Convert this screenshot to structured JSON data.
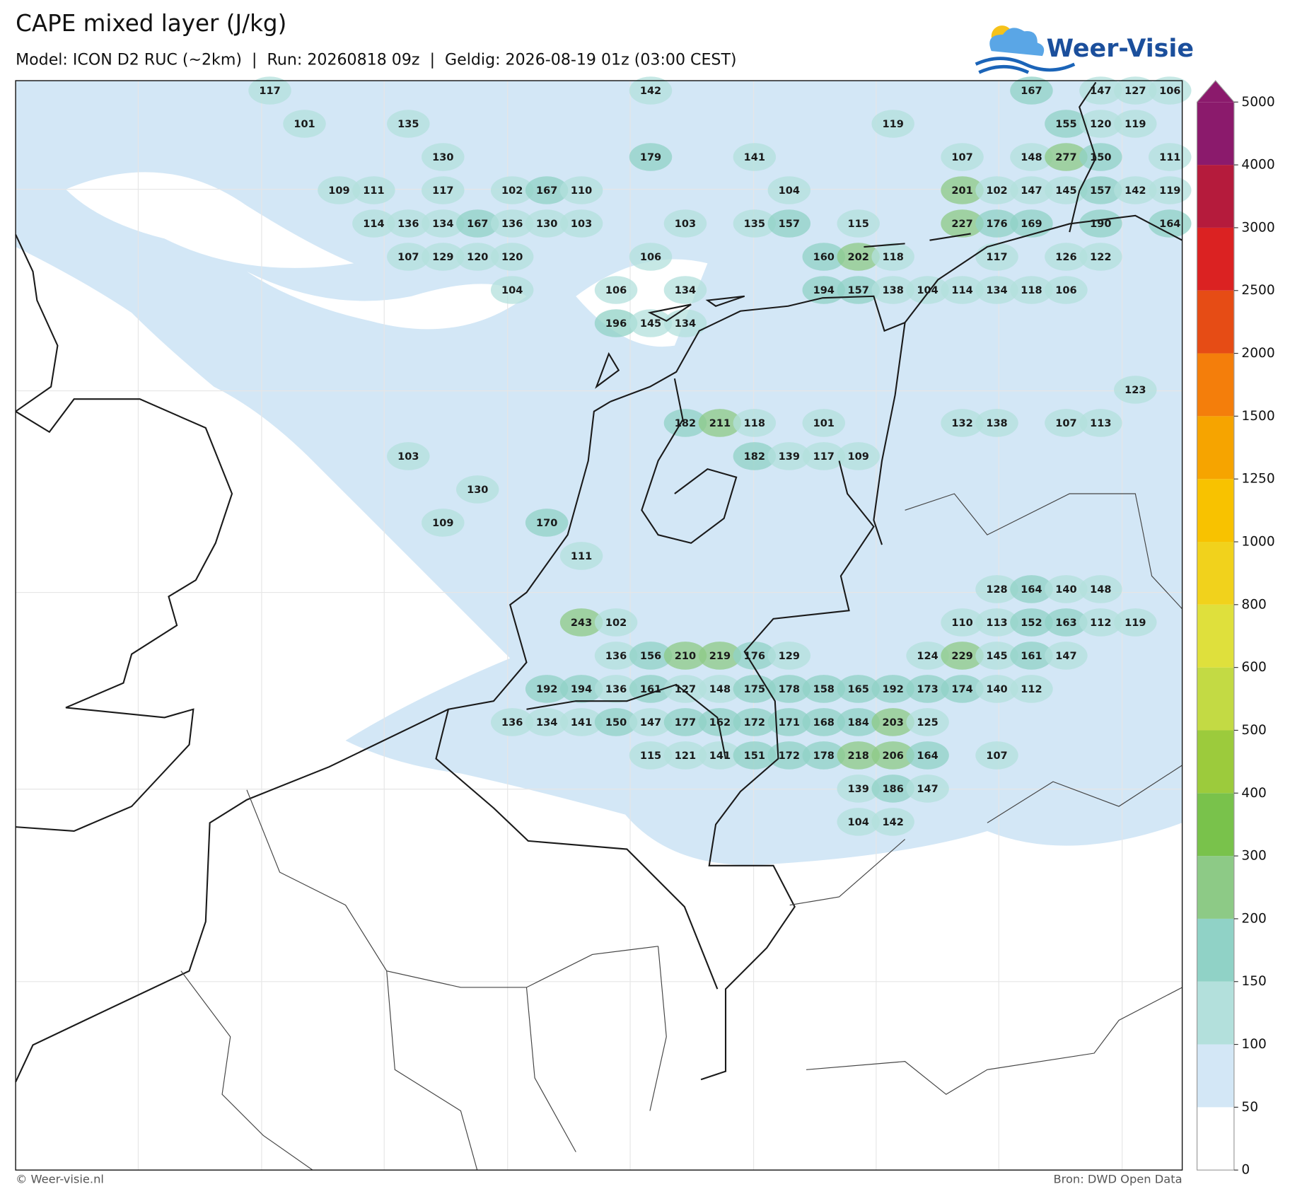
{
  "map": {
    "title": "CAPE mixed layer (J/kg)",
    "subtitle": "Model: ICON D2 RUC (~2km)  |  Run: 20260818 09z  |  Geldig: 2026-08-19 01z (03:00 CEST)",
    "logo": "Weer-Visie",
    "labels": [
      [
        117,
        null,
        null,
        null,
        null,
        null,
        null,
        null,
        null,
        null,
        null,
        142,
        null,
        null,
        null,
        null,
        null,
        null,
        null,
        null,
        null,
        null,
        167,
        null,
        147,
        127,
        106
      ],
      [
        null,
        101,
        null,
        null,
        135,
        null,
        null,
        null,
        null,
        null,
        null,
        null,
        null,
        null,
        null,
        null,
        null,
        null,
        119,
        null,
        null,
        null,
        null,
        155,
        120,
        119,
        null
      ],
      [
        null,
        null,
        null,
        null,
        null,
        130,
        null,
        null,
        null,
        null,
        null,
        179,
        null,
        null,
        141,
        null,
        null,
        null,
        null,
        null,
        107,
        null,
        148,
        277,
        150,
        null,
        111
      ],
      [
        null,
        null,
        109,
        111,
        null,
        117,
        null,
        102,
        167,
        110,
        null,
        null,
        null,
        null,
        null,
        104,
        null,
        null,
        null,
        null,
        201,
        102,
        147,
        145,
        157,
        142,
        119
      ],
      [
        null,
        null,
        null,
        114,
        136,
        134,
        167,
        136,
        130,
        103,
        null,
        null,
        103,
        null,
        135,
        157,
        null,
        115,
        null,
        null,
        227,
        176,
        169,
        null,
        190,
        null,
        164
      ],
      [
        null,
        null,
        null,
        null,
        107,
        129,
        120,
        120,
        null,
        null,
        null,
        106,
        null,
        null,
        null,
        null,
        160,
        202,
        118,
        null,
        null,
        117,
        null,
        126,
        122,
        null,
        null
      ],
      [
        null,
        null,
        null,
        null,
        null,
        null,
        null,
        104,
        null,
        null,
        106,
        null,
        134,
        null,
        null,
        null,
        194,
        157,
        138,
        104,
        114,
        134,
        118,
        106,
        null,
        null,
        null
      ],
      [
        null,
        null,
        null,
        null,
        null,
        null,
        null,
        null,
        null,
        null,
        196,
        145,
        134,
        null,
        null,
        null,
        null,
        null,
        null,
        null,
        null,
        null,
        null,
        null,
        null,
        null,
        null
      ],
      [
        null,
        null,
        null,
        null,
        null,
        null,
        null,
        null,
        null,
        null,
        null,
        null,
        null,
        null,
        null,
        null,
        null,
        null,
        null,
        null,
        null,
        null,
        null,
        null,
        null,
        null,
        null
      ],
      [
        null,
        null,
        null,
        null,
        null,
        null,
        null,
        null,
        null,
        null,
        null,
        null,
        null,
        null,
        null,
        null,
        null,
        null,
        null,
        null,
        null,
        null,
        null,
        null,
        null,
        123,
        null
      ],
      [
        null,
        null,
        null,
        null,
        null,
        null,
        null,
        null,
        null,
        null,
        null,
        null,
        182,
        211,
        118,
        null,
        101,
        null,
        null,
        null,
        132,
        138,
        null,
        107,
        113,
        null,
        null
      ],
      [
        null,
        null,
        null,
        null,
        103,
        null,
        null,
        null,
        null,
        null,
        null,
        null,
        null,
        null,
        182,
        139,
        117,
        109,
        null,
        null,
        null,
        null,
        null,
        null,
        null,
        null,
        null
      ],
      [
        null,
        null,
        null,
        null,
        null,
        null,
        130,
        null,
        null,
        null,
        null,
        null,
        null,
        null,
        null,
        null,
        null,
        null,
        null,
        null,
        null,
        null,
        null,
        null,
        null,
        null,
        null
      ],
      [
        null,
        null,
        null,
        null,
        null,
        109,
        null,
        null,
        170,
        null,
        null,
        null,
        null,
        null,
        null,
        null,
        null,
        null,
        null,
        null,
        null,
        null,
        null,
        null,
        null,
        null,
        null
      ],
      [
        null,
        null,
        null,
        null,
        null,
        null,
        null,
        null,
        null,
        111,
        null,
        null,
        null,
        null,
        null,
        null,
        null,
        null,
        null,
        null,
        null,
        null,
        null,
        null,
        null,
        null,
        null
      ],
      [
        null,
        null,
        null,
        null,
        null,
        null,
        null,
        null,
        null,
        null,
        null,
        null,
        null,
        null,
        null,
        null,
        null,
        null,
        null,
        null,
        null,
        128,
        164,
        140,
        148,
        null,
        null
      ],
      [
        null,
        null,
        null,
        null,
        null,
        null,
        null,
        null,
        null,
        243,
        102,
        null,
        null,
        null,
        null,
        null,
        null,
        null,
        null,
        null,
        110,
        113,
        152,
        163,
        112,
        119,
        null
      ],
      [
        null,
        null,
        null,
        null,
        null,
        null,
        null,
        null,
        null,
        null,
        136,
        156,
        210,
        219,
        176,
        129,
        null,
        null,
        null,
        124,
        229,
        145,
        161,
        147,
        null,
        null,
        null
      ],
      [
        null,
        null,
        null,
        null,
        null,
        null,
        null,
        null,
        192,
        194,
        136,
        161,
        127,
        148,
        175,
        178,
        158,
        165,
        192,
        173,
        174,
        140,
        112,
        null,
        null,
        null,
        null
      ],
      [
        null,
        null,
        null,
        null,
        null,
        null,
        null,
        136,
        134,
        141,
        150,
        147,
        177,
        162,
        172,
        171,
        168,
        184,
        203,
        125,
        null,
        null,
        null,
        null,
        null,
        null,
        null
      ],
      [
        null,
        null,
        null,
        null,
        null,
        null,
        null,
        null,
        null,
        null,
        null,
        115,
        121,
        141,
        151,
        172,
        178,
        218,
        206,
        164,
        null,
        107,
        null,
        null,
        null,
        null,
        null
      ],
      [
        null,
        null,
        null,
        null,
        null,
        null,
        null,
        null,
        null,
        null,
        null,
        null,
        null,
        null,
        null,
        null,
        null,
        139,
        186,
        147,
        null,
        null,
        null,
        null,
        null,
        null,
        null
      ],
      [
        null,
        null,
        null,
        null,
        null,
        null,
        null,
        null,
        null,
        null,
        null,
        null,
        null,
        null,
        null,
        null,
        null,
        104,
        142,
        null,
        null,
        null,
        null,
        null,
        null,
        null,
        null
      ]
    ]
  },
  "colorbar": {
    "ticks": [
      0,
      50,
      100,
      150,
      200,
      300,
      400,
      500,
      600,
      800,
      1000,
      1250,
      1500,
      2000,
      2500,
      3000,
      4000,
      5000
    ],
    "colors": [
      "#ffffff",
      "#d3e7f6",
      "#b3e0dc",
      "#90d2c6",
      "#8dca86",
      "#79c24b",
      "#9ccb3c",
      "#c3da44",
      "#dfe03c",
      "#f1d21c",
      "#f8c200",
      "#f6a400",
      "#f47e0b",
      "#e64c15",
      "#db2222",
      "#b51b3c",
      "#8b1a6c"
    ],
    "over_color": "#8b1a6c"
  },
  "footer": {
    "left": "© Weer-visie.nl",
    "right": "Bron: DWD Open Data"
  }
}
